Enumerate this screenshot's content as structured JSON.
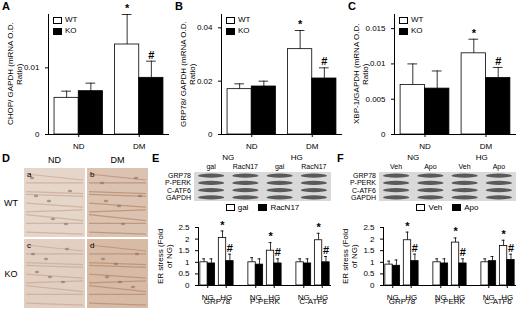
{
  "chart_data": [
    {
      "panel": "A",
      "type": "bar",
      "y_label": "CHOP/ GAPDH (mRNA O.D. Ratio)",
      "categories": [
        "ND",
        "DM"
      ],
      "series": [
        {
          "name": "WT",
          "color": "#ffffff",
          "values": [
            0.0055,
            0.0135
          ],
          "errors": [
            0.001,
            0.0045
          ],
          "significance": [
            null,
            "*"
          ]
        },
        {
          "name": "KO",
          "color": "#000000",
          "values": [
            0.0065,
            0.0085
          ],
          "errors": [
            0.0012,
            0.0025
          ],
          "significance": [
            null,
            "#"
          ]
        }
      ],
      "ylim": [
        0,
        0.018
      ],
      "yticks": [
        0,
        0.01
      ],
      "legend": "top-left"
    },
    {
      "panel": "B",
      "type": "bar",
      "y_label": "GRP78/ GAPDH (mRNA O.D. Ratio)",
      "categories": [
        "ND",
        "DM"
      ],
      "series": [
        {
          "name": "WT",
          "color": "#ffffff",
          "values": [
            0.017,
            0.032
          ],
          "errors": [
            0.002,
            0.007
          ],
          "significance": [
            null,
            "*"
          ]
        },
        {
          "name": "KO",
          "color": "#000000",
          "values": [
            0.018,
            0.021
          ],
          "errors": [
            0.002,
            0.004
          ],
          "significance": [
            null,
            "#"
          ]
        }
      ],
      "ylim": [
        0,
        0.045
      ],
      "yticks": [
        0,
        0.02,
        0.04
      ],
      "legend": "top-left"
    },
    {
      "panel": "C",
      "type": "bar",
      "y_label": "XBP-1/GAPDH (mRNA O.D. Ratio)",
      "categories": [
        "ND",
        "DM"
      ],
      "series": [
        {
          "name": "WT",
          "color": "#ffffff",
          "values": [
            0.007,
            0.0115
          ],
          "errors": [
            0.003,
            0.002
          ],
          "significance": [
            null,
            "*"
          ]
        },
        {
          "name": "KO",
          "color": "#000000",
          "values": [
            0.0065,
            0.008
          ],
          "errors": [
            0.0025,
            0.0015
          ],
          "significance": [
            null,
            "#"
          ]
        }
      ],
      "ylim": [
        0,
        0.017
      ],
      "yticks": [
        0,
        0.005,
        0.01,
        0.015
      ],
      "legend": "top-left"
    },
    {
      "panel": "E",
      "type": "bar",
      "y_label": "ER stress (Fold of NG)",
      "groups": [
        "GRP78",
        "P-PERK",
        "C-ATF6"
      ],
      "categories": [
        "NG",
        "HG"
      ],
      "series": [
        {
          "name": "gal",
          "color": "#ffffff",
          "values": [
            [
              1.0,
              2.05
            ],
            [
              1.0,
              1.5
            ],
            [
              1.0,
              1.95
            ]
          ],
          "errors": [
            [
              0.15,
              0.3
            ],
            [
              0.2,
              0.35
            ],
            [
              0.15,
              0.3
            ]
          ],
          "significance": [
            [
              null,
              "*"
            ],
            [
              null,
              "*"
            ],
            [
              null,
              "*"
            ]
          ]
        },
        {
          "name": "RacN17",
          "color": "#000000",
          "values": [
            [
              0.95,
              1.05
            ],
            [
              0.9,
              0.95
            ],
            [
              0.95,
              1.0
            ]
          ],
          "errors": [
            [
              0.2,
              0.3
            ],
            [
              0.25,
              0.2
            ],
            [
              0.2,
              0.25
            ]
          ],
          "significance": [
            [
              null,
              "#"
            ],
            [
              null,
              "#"
            ],
            [
              null,
              "#"
            ]
          ]
        }
      ],
      "ylim": [
        0,
        2.5
      ],
      "yticks": [
        0,
        0.5,
        1,
        1.5,
        2,
        2.5
      ],
      "legend": "top",
      "blot": {
        "conditions": [
          "NG",
          "HG"
        ],
        "treatments": [
          "gal",
          "RacN17"
        ],
        "rows": [
          "GRP78",
          "P-PERK",
          "C-ATF6",
          "GAPDH"
        ]
      }
    },
    {
      "panel": "F",
      "type": "bar",
      "y_label": "ER stress (Fold of NG)",
      "groups": [
        "GRP78",
        "P-PERK",
        "C-ATF6"
      ],
      "categories": [
        "NG",
        "HG"
      ],
      "series": [
        {
          "name": "Veh",
          "color": "#ffffff",
          "values": [
            [
              0.9,
              1.95
            ],
            [
              1.0,
              1.85
            ],
            [
              1.0,
              1.7
            ]
          ],
          "errors": [
            [
              0.15,
              0.35
            ],
            [
              0.15,
              0.2
            ],
            [
              0.15,
              0.25
            ]
          ],
          "significance": [
            [
              null,
              "*"
            ],
            [
              null,
              "*"
            ],
            [
              null,
              "*"
            ]
          ]
        },
        {
          "name": "Apo",
          "color": "#000000",
          "values": [
            [
              0.85,
              1.05
            ],
            [
              0.95,
              0.95
            ],
            [
              1.05,
              1.1
            ]
          ],
          "errors": [
            [
              0.25,
              0.3
            ],
            [
              0.2,
              0.2
            ],
            [
              0.2,
              0.25
            ]
          ],
          "significance": [
            [
              null,
              "#"
            ],
            [
              null,
              "#"
            ],
            [
              null,
              "#"
            ]
          ]
        }
      ],
      "ylim": [
        0,
        2.5
      ],
      "yticks": [
        0,
        0.5,
        1,
        1.5,
        2,
        2.5
      ],
      "legend": "top",
      "blot": {
        "conditions": [
          "NG",
          "HG"
        ],
        "treatments": [
          "Veh",
          "Apo"
        ],
        "rows": [
          "GRP78",
          "P-PERK",
          "C-ATF6",
          "GAPDH"
        ]
      }
    }
  ],
  "micrographs": {
    "panel": "D",
    "columns": [
      "ND",
      "DM"
    ],
    "rows": [
      "WT",
      "KO"
    ],
    "images": [
      "a",
      "b",
      "c",
      "d"
    ]
  }
}
